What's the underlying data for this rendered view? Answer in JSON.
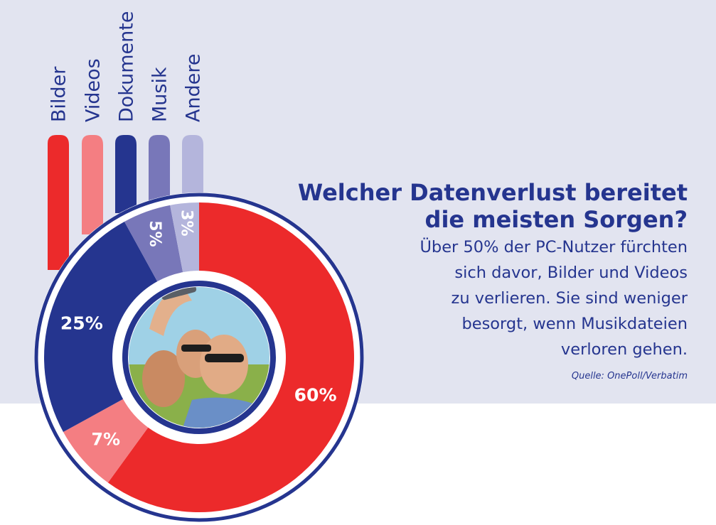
{
  "colors": {
    "background_top": "#e2e4f0",
    "background_bottom": "#ffffff",
    "navy": "#25358f",
    "bilder": "#ec2a2b",
    "videos": "#f47e82",
    "dokumente": "#25358f",
    "musik": "#7877b9",
    "andere": "#b4b5dc"
  },
  "headline": {
    "title_line1": "Welcher Datenverlust bereitet",
    "title_line2": "die meisten Sorgen?",
    "body_lines": [
      "Über 50% der PC-Nutzer fürchten",
      "sich davor, Bilder und Videos",
      "zu verlieren. Sie sind weniger",
      "besorgt, wenn Musikdateien",
      "verloren gehen."
    ],
    "source": "Quelle: OnePoll/Verbatim"
  },
  "center_image": {
    "icon": "selfie-photo-icon"
  },
  "chart_data": {
    "type": "pie",
    "donut": true,
    "unit": "%",
    "categories": [
      "Bilder",
      "Videos",
      "Dokumente",
      "Musik",
      "Andere"
    ],
    "values": [
      60,
      7,
      25,
      5,
      3
    ],
    "value_labels": [
      "60%",
      "7%",
      "25%",
      "5%",
      "3%"
    ],
    "colors": [
      "#ec2a2b",
      "#f47e82",
      "#25358f",
      "#7877b9",
      "#b4b5dc"
    ],
    "legend_placement": "top-left"
  }
}
